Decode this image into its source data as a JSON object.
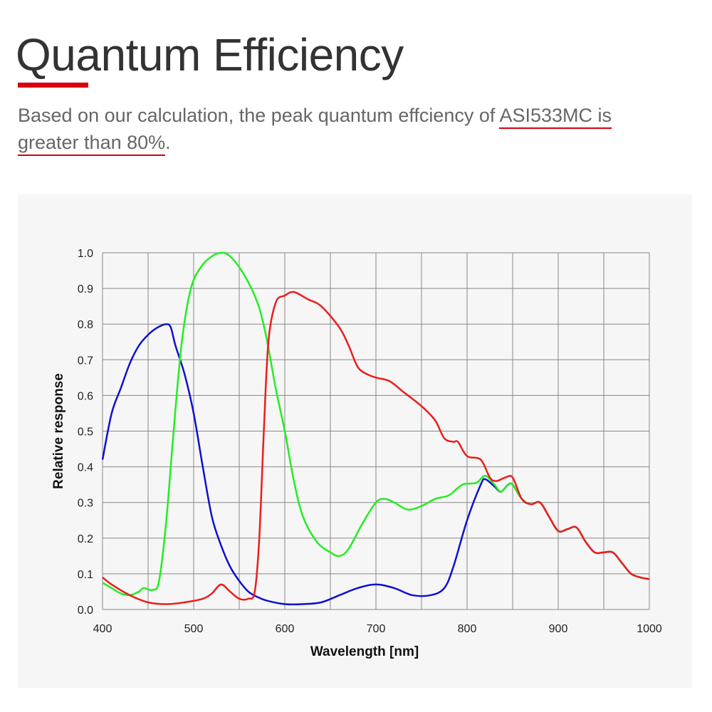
{
  "header": {
    "title": "Quantum Efficiency",
    "desc_part1": "Based on our calculation, the peak quantum effciency of ",
    "desc_highlight1": "ASI533MC is",
    "desc_highlight2": "greater than 80%",
    "desc_end": "."
  },
  "colors": {
    "accent": "#d7000f",
    "red": "#ee1c1c",
    "green": "#22ee22",
    "blue": "#1010d0"
  },
  "chart_data": {
    "type": "line",
    "title": "",
    "xlabel": "Wavelength [nm]",
    "ylabel": "Relative response",
    "xlim": [
      400,
      1000
    ],
    "ylim": [
      0,
      1.0
    ],
    "xticks": [
      400,
      500,
      600,
      700,
      800,
      900,
      1000
    ],
    "yticks": [
      "0.0",
      "0.1",
      "0.2",
      "0.3",
      "0.4",
      "0.5",
      "0.6",
      "0.7",
      "0.8",
      "0.9",
      "1.0"
    ],
    "grid": true,
    "series": [
      {
        "name": "Blue",
        "color": "#1010d0",
        "points": [
          [
            400,
            0.42
          ],
          [
            410,
            0.55
          ],
          [
            420,
            0.62
          ],
          [
            430,
            0.69
          ],
          [
            440,
            0.74
          ],
          [
            450,
            0.77
          ],
          [
            460,
            0.79
          ],
          [
            470,
            0.8
          ],
          [
            475,
            0.79
          ],
          [
            480,
            0.74
          ],
          [
            490,
            0.66
          ],
          [
            500,
            0.55
          ],
          [
            510,
            0.4
          ],
          [
            520,
            0.26
          ],
          [
            530,
            0.18
          ],
          [
            540,
            0.12
          ],
          [
            550,
            0.08
          ],
          [
            560,
            0.05
          ],
          [
            570,
            0.035
          ],
          [
            580,
            0.025
          ],
          [
            600,
            0.015
          ],
          [
            620,
            0.015
          ],
          [
            640,
            0.02
          ],
          [
            660,
            0.04
          ],
          [
            680,
            0.06
          ],
          [
            700,
            0.07
          ],
          [
            720,
            0.06
          ],
          [
            740,
            0.04
          ],
          [
            760,
            0.04
          ],
          [
            775,
            0.06
          ],
          [
            785,
            0.12
          ],
          [
            800,
            0.25
          ],
          [
            815,
            0.35
          ],
          [
            820,
            0.365
          ],
          [
            830,
            0.345
          ],
          [
            837,
            0.33
          ],
          [
            845,
            0.35
          ],
          [
            850,
            0.35
          ],
          [
            860,
            0.31
          ],
          [
            870,
            0.295
          ],
          [
            880,
            0.3
          ],
          [
            890,
            0.26
          ],
          [
            900,
            0.22
          ],
          [
            910,
            0.225
          ],
          [
            920,
            0.23
          ],
          [
            930,
            0.19
          ],
          [
            940,
            0.16
          ],
          [
            950,
            0.16
          ],
          [
            960,
            0.16
          ],
          [
            970,
            0.13
          ],
          [
            980,
            0.1
          ],
          [
            990,
            0.09
          ],
          [
            1000,
            0.085
          ]
        ]
      },
      {
        "name": "Green",
        "color": "#22ee22",
        "points": [
          [
            400,
            0.075
          ],
          [
            410,
            0.06
          ],
          [
            420,
            0.045
          ],
          [
            430,
            0.04
          ],
          [
            440,
            0.05
          ],
          [
            445,
            0.06
          ],
          [
            455,
            0.055
          ],
          [
            462,
            0.08
          ],
          [
            470,
            0.25
          ],
          [
            478,
            0.5
          ],
          [
            487,
            0.75
          ],
          [
            497,
            0.9
          ],
          [
            508,
            0.96
          ],
          [
            520,
            0.99
          ],
          [
            530,
            1.0
          ],
          [
            540,
            0.99
          ],
          [
            555,
            0.94
          ],
          [
            570,
            0.86
          ],
          [
            580,
            0.76
          ],
          [
            590,
            0.62
          ],
          [
            600,
            0.5
          ],
          [
            610,
            0.36
          ],
          [
            620,
            0.26
          ],
          [
            635,
            0.19
          ],
          [
            650,
            0.16
          ],
          [
            660,
            0.15
          ],
          [
            670,
            0.17
          ],
          [
            685,
            0.24
          ],
          [
            700,
            0.3
          ],
          [
            710,
            0.31
          ],
          [
            720,
            0.3
          ],
          [
            735,
            0.28
          ],
          [
            750,
            0.29
          ],
          [
            765,
            0.31
          ],
          [
            780,
            0.32
          ],
          [
            795,
            0.35
          ],
          [
            810,
            0.355
          ],
          [
            820,
            0.375
          ],
          [
            830,
            0.35
          ],
          [
            837,
            0.33
          ],
          [
            845,
            0.35
          ],
          [
            850,
            0.35
          ],
          [
            860,
            0.31
          ],
          [
            870,
            0.295
          ],
          [
            880,
            0.3
          ],
          [
            890,
            0.26
          ],
          [
            900,
            0.22
          ],
          [
            910,
            0.225
          ],
          [
            920,
            0.23
          ],
          [
            930,
            0.19
          ],
          [
            940,
            0.16
          ],
          [
            950,
            0.16
          ],
          [
            960,
            0.16
          ],
          [
            970,
            0.13
          ],
          [
            980,
            0.1
          ],
          [
            990,
            0.09
          ],
          [
            1000,
            0.085
          ]
        ]
      },
      {
        "name": "Red",
        "color": "#ee1c1c",
        "points": [
          [
            400,
            0.09
          ],
          [
            410,
            0.07
          ],
          [
            430,
            0.04
          ],
          [
            450,
            0.02
          ],
          [
            470,
            0.015
          ],
          [
            490,
            0.02
          ],
          [
            510,
            0.03
          ],
          [
            520,
            0.045
          ],
          [
            530,
            0.07
          ],
          [
            540,
            0.05
          ],
          [
            550,
            0.03
          ],
          [
            560,
            0.03
          ],
          [
            567,
            0.05
          ],
          [
            572,
            0.2
          ],
          [
            577,
            0.5
          ],
          [
            582,
            0.75
          ],
          [
            590,
            0.86
          ],
          [
            600,
            0.88
          ],
          [
            610,
            0.89
          ],
          [
            625,
            0.87
          ],
          [
            640,
            0.85
          ],
          [
            660,
            0.79
          ],
          [
            670,
            0.74
          ],
          [
            680,
            0.68
          ],
          [
            690,
            0.66
          ],
          [
            700,
            0.65
          ],
          [
            715,
            0.64
          ],
          [
            730,
            0.61
          ],
          [
            750,
            0.57
          ],
          [
            765,
            0.53
          ],
          [
            775,
            0.48
          ],
          [
            785,
            0.47
          ],
          [
            790,
            0.47
          ],
          [
            800,
            0.43
          ],
          [
            815,
            0.42
          ],
          [
            825,
            0.37
          ],
          [
            832,
            0.36
          ],
          [
            842,
            0.37
          ],
          [
            850,
            0.37
          ],
          [
            860,
            0.31
          ],
          [
            870,
            0.295
          ],
          [
            880,
            0.3
          ],
          [
            890,
            0.26
          ],
          [
            900,
            0.22
          ],
          [
            910,
            0.225
          ],
          [
            920,
            0.23
          ],
          [
            930,
            0.19
          ],
          [
            940,
            0.16
          ],
          [
            950,
            0.16
          ],
          [
            960,
            0.16
          ],
          [
            970,
            0.13
          ],
          [
            980,
            0.1
          ],
          [
            990,
            0.09
          ],
          [
            1000,
            0.085
          ]
        ]
      }
    ]
  }
}
